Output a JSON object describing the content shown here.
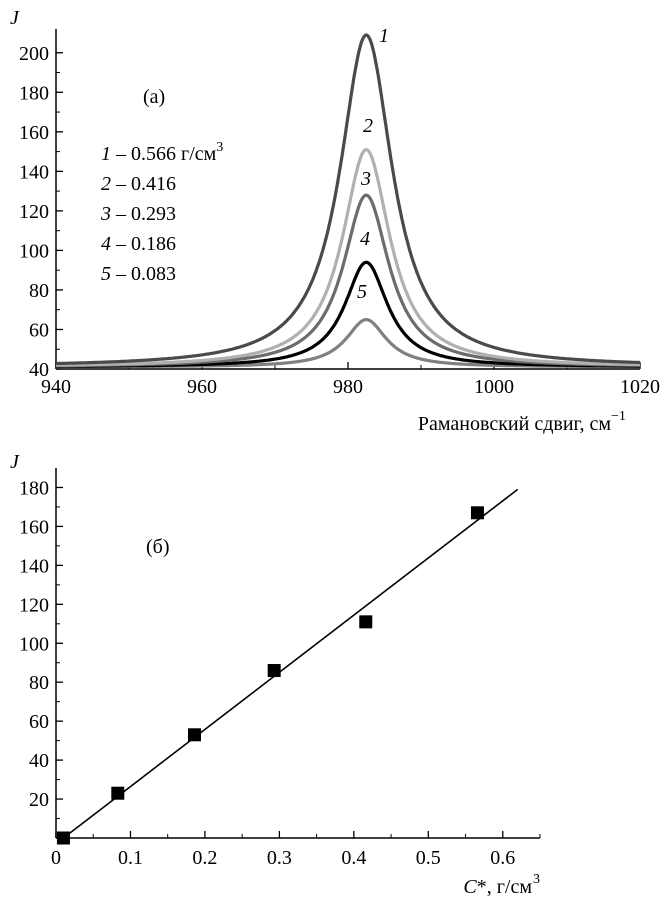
{
  "chart_data": [
    {
      "id": "a",
      "type": "line",
      "panel_label": "(а)",
      "ylabel": "J",
      "xlabel": "Рамановский сдвиг, см",
      "xlabel_sup": "−1",
      "xlim": [
        940,
        1020
      ],
      "ylim": [
        40,
        210
      ],
      "xticks": [
        940,
        960,
        980,
        1000,
        1020
      ],
      "yticks": [
        40,
        60,
        80,
        100,
        120,
        140,
        160,
        180,
        200
      ],
      "peak_center": 982.5,
      "baseline": 41,
      "legend": [
        {
          "num": "1",
          "text": " – 0.566 г/см",
          "sup": "3"
        },
        {
          "num": "2",
          "text": " – 0.416",
          "sup": ""
        },
        {
          "num": "3",
          "text": " – 0.293",
          "sup": ""
        },
        {
          "num": "4",
          "text": " – 0.186",
          "sup": ""
        },
        {
          "num": "5",
          "text": " – 0.083",
          "sup": ""
        }
      ],
      "series": [
        {
          "name": "1",
          "peak": 209,
          "color": "#4a4a4a"
        },
        {
          "name": "2",
          "peak": 151,
          "color": "#b0b0b0"
        },
        {
          "name": "3",
          "peak": 128,
          "color": "#6c6c6c"
        },
        {
          "name": "4",
          "peak": 94,
          "color": "#000000"
        },
        {
          "name": "5",
          "peak": 65,
          "color": "#808080"
        }
      ]
    },
    {
      "id": "b",
      "type": "scatter",
      "panel_label": "(б)",
      "ylabel": "J",
      "xlabel": "C*, г/см",
      "xlabel_sup": "3",
      "xlim": [
        0,
        0.65
      ],
      "ylim": [
        0,
        190
      ],
      "xticks": [
        0,
        0.1,
        0.2,
        0.3,
        0.4,
        0.5,
        0.6
      ],
      "yticks": [
        20,
        40,
        60,
        80,
        100,
        120,
        140,
        160,
        180
      ],
      "points": [
        {
          "x": 0.01,
          "y": 0
        },
        {
          "x": 0.083,
          "y": 23
        },
        {
          "x": 0.186,
          "y": 53
        },
        {
          "x": 0.293,
          "y": 86
        },
        {
          "x": 0.416,
          "y": 111
        },
        {
          "x": 0.566,
          "y": 167
        }
      ],
      "fit_line": {
        "x": [
          0.01,
          0.62
        ],
        "y": [
          0,
          179
        ]
      }
    }
  ]
}
